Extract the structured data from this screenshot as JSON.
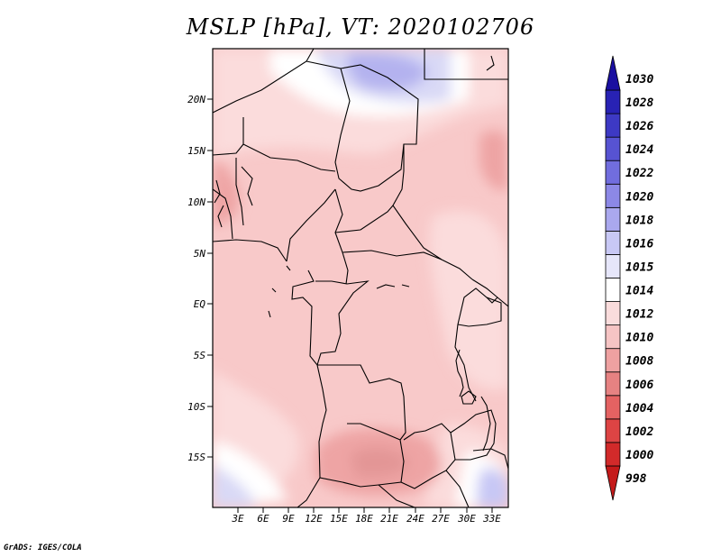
{
  "title": "MSLP [hPa], VT: 2020102706",
  "credit": "GrADS: IGES/COLA",
  "map": {
    "lat_labels": [
      "20N",
      "15N",
      "10N",
      "5N",
      "EQ",
      "5S",
      "10S",
      "15S"
    ],
    "lon_labels": [
      "3E",
      "6E",
      "9E",
      "12E",
      "15E",
      "18E",
      "21E",
      "24E",
      "27E",
      "30E",
      "33E"
    ]
  },
  "colorbar": {
    "levels": [
      "998",
      "1000",
      "1002",
      "1004",
      "1006",
      "1008",
      "1010",
      "1012",
      "1014",
      "1015",
      "1016",
      "1018",
      "1020",
      "1022",
      "1024",
      "1026",
      "1028",
      "1030"
    ],
    "colors": [
      "#c41a1a",
      "#d22a2a",
      "#dd4444",
      "#e46262",
      "#e68282",
      "#eea1a1",
      "#f6c4c4",
      "#fadcdc",
      "#ffffff",
      "#e6e6fa",
      "#c8c8f5",
      "#aaa8ee",
      "#8c88e6",
      "#716dde",
      "#5753d2",
      "#3d39c4",
      "#2822b4",
      "#1a0fa0"
    ]
  }
}
